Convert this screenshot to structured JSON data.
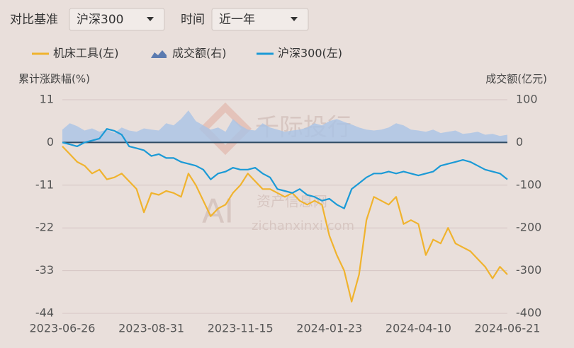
{
  "controls": {
    "benchmark_label": "对比基准",
    "benchmark_value": "沪深300",
    "period_label": "时间",
    "period_value": "近一年"
  },
  "watermark": {
    "brand": "千际投行",
    "logo": "AI",
    "site": "资产信息网",
    "url": "zichanxinxi.com"
  },
  "chart_data": {
    "type": "line",
    "ylabel": "累计涨跌幅(%)",
    "y2label": "成交额(亿元)",
    "categories": [
      "2023-06-26",
      null,
      null,
      null,
      null,
      null,
      null,
      null,
      null,
      null,
      null,
      null,
      "2023-08-31",
      null,
      null,
      null,
      null,
      null,
      null,
      null,
      null,
      null,
      null,
      null,
      "2023-11-15",
      null,
      null,
      null,
      null,
      null,
      null,
      null,
      null,
      null,
      null,
      null,
      "2024-01-23",
      null,
      null,
      null,
      null,
      null,
      null,
      null,
      null,
      null,
      null,
      null,
      "2024-04-10",
      null,
      null,
      null,
      null,
      null,
      null,
      null,
      null,
      null,
      null,
      null,
      "2024-06-21"
    ],
    "ylim": [
      -44,
      11
    ],
    "yticks": [
      11,
      0,
      -11,
      -22,
      -33,
      -44
    ],
    "y2lim": [
      -400,
      100
    ],
    "y2ticks": [
      100,
      0,
      -100,
      -200,
      -300,
      -400
    ],
    "grid": true,
    "series": [
      {
        "name": "机床工具(左)",
        "color": "#f0b32e",
        "type": "line",
        "values": [
          -1,
          -3,
          -5,
          -6,
          -8,
          -7,
          -9.5,
          -9,
          -8,
          -10,
          -12,
          -18,
          -13,
          -13.5,
          -12.5,
          -13,
          -14,
          -8,
          -11,
          -15,
          -19,
          -17,
          -16,
          -13,
          -11,
          -8,
          -10,
          -12,
          -12,
          -13,
          -14,
          -13,
          -15,
          -16,
          -15,
          -16,
          -24,
          -29,
          -33,
          -41,
          -34,
          -20,
          -14,
          -15,
          -16,
          -14,
          -21,
          -20,
          -21,
          -29,
          -25,
          -26,
          -22,
          -26,
          -27,
          -28,
          -30,
          -32,
          -35,
          -32,
          -34
        ]
      },
      {
        "name": "成交额(右)",
        "color": "#a9c3e6",
        "type": "area",
        "axis": "y2",
        "values": [
          30,
          45,
          38,
          28,
          33,
          25,
          30,
          22,
          35,
          28,
          25,
          33,
          30,
          28,
          45,
          40,
          55,
          75,
          50,
          40,
          30,
          35,
          25,
          55,
          40,
          30,
          28,
          45,
          35,
          30,
          25,
          28,
          30,
          35,
          45,
          40,
          50,
          55,
          48,
          42,
          35,
          30,
          28,
          30,
          35,
          45,
          40,
          30,
          28,
          25,
          30,
          22,
          25,
          28,
          20,
          22,
          25,
          18,
          20,
          15,
          18
        ]
      },
      {
        "name": "沪深300(左)",
        "color": "#1b9ad6",
        "type": "line",
        "values": [
          0,
          -0.5,
          -1,
          0,
          0.5,
          1,
          3.5,
          3,
          2,
          -1,
          -1.5,
          -2,
          -3.5,
          -3,
          -4,
          -4,
          -5,
          -5.5,
          -6,
          -7,
          -9.5,
          -8,
          -7.5,
          -6.5,
          -7,
          -7,
          -6.5,
          -8,
          -9,
          -12,
          -12.5,
          -13,
          -12,
          -13.5,
          -14,
          -15,
          -14.5,
          -16,
          -17,
          -12,
          -10.5,
          -9,
          -8,
          -8,
          -7.5,
          -8,
          -7.5,
          -8,
          -8.5,
          -8,
          -7.5,
          -6,
          -5.5,
          -5,
          -4.5,
          -5,
          -6,
          -7,
          -7.5,
          -8,
          -9.5
        ]
      }
    ]
  }
}
